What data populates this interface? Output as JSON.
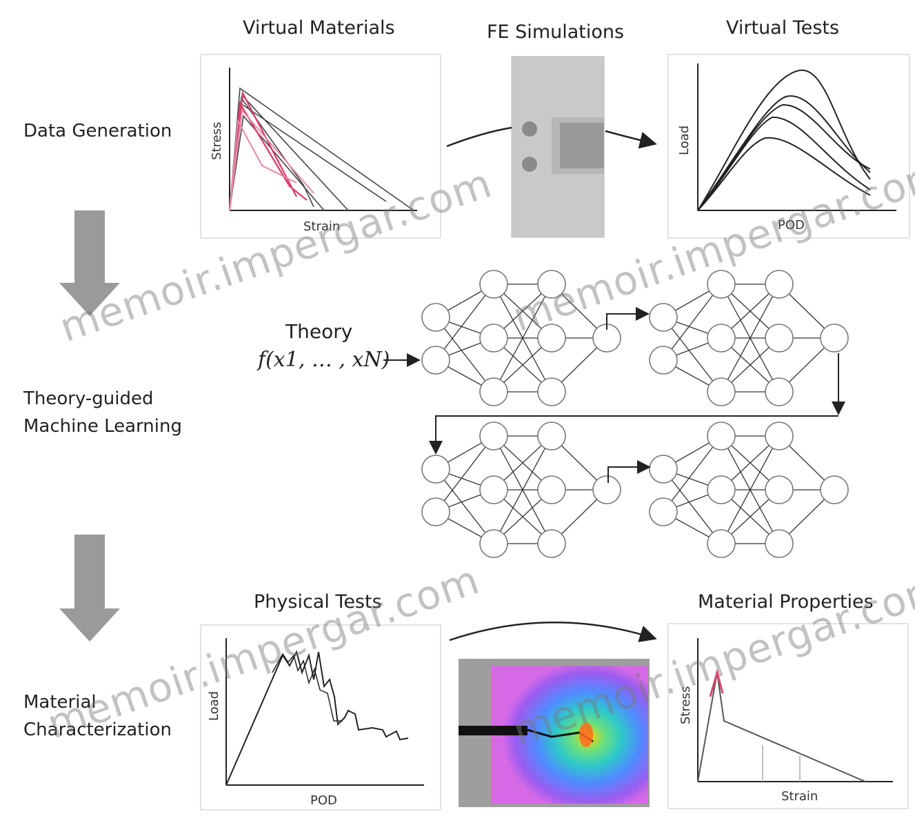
{
  "sections": {
    "virtual_materials": "Virtual Materials",
    "fe_simulations": "FE Simulations",
    "virtual_tests": "Virtual Tests",
    "physical_tests": "Physical Tests",
    "material_properties": "Material Properties"
  },
  "rows": {
    "data_generation": "Data Generation",
    "ml_line1": "Theory-guided",
    "ml_line2": "Machine Learning",
    "mc_line1": "Material",
    "mc_line2": "Characterization"
  },
  "axes": {
    "vm_x": "Strain",
    "vm_y": "Stress",
    "vt_x": "POD",
    "vt_y": "Load",
    "pt_x": "POD",
    "pt_y": "Load",
    "mp_x": "Strain",
    "mp_y": "Stress"
  },
  "theory": {
    "label": "Theory",
    "formula": "f(x1, … , xN)"
  },
  "watermark": "memoir.impergar.com",
  "colors": {
    "accent_red": "#d9436b",
    "arrow_gray": "#9a9a9a",
    "line": "#222222"
  }
}
